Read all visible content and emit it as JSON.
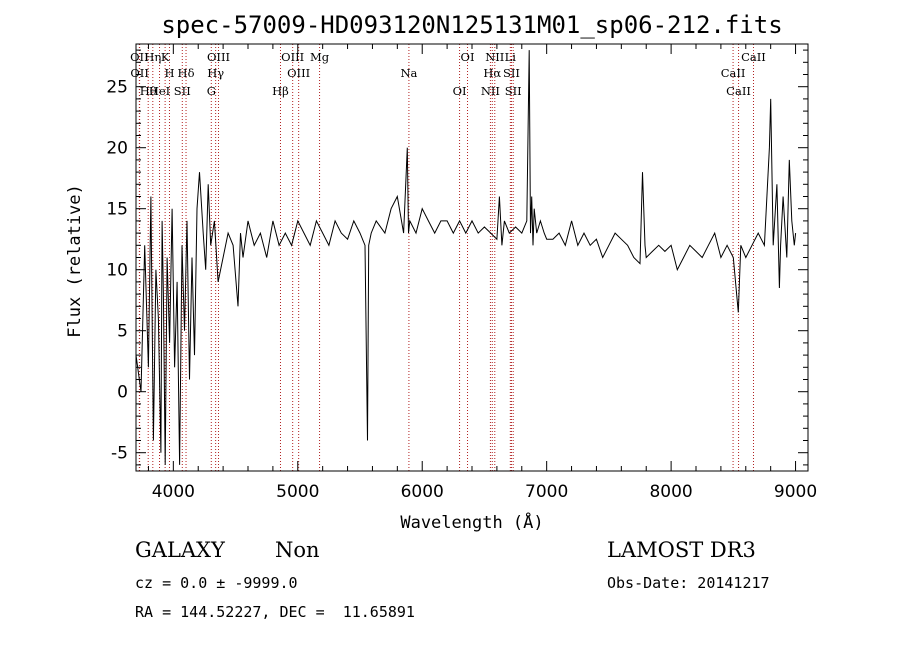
{
  "chart_data": {
    "type": "line",
    "title": "spec-57009-HD093120N125131M01_sp06-212.fits",
    "xlabel": "Wavelength (Å)",
    "ylabel": "Flux (relative)",
    "xlim": [
      3700,
      9100
    ],
    "ylim": [
      -6.5,
      28.5
    ],
    "xticks": [
      4000,
      5000,
      6000,
      7000,
      8000,
      9000
    ],
    "yticks": [
      -5,
      0,
      5,
      10,
      15,
      20,
      25
    ],
    "grid": false,
    "series": [
      {
        "name": "spectrum",
        "x": [
          3700,
          3740,
          3770,
          3800,
          3820,
          3840,
          3860,
          3880,
          3900,
          3910,
          3920,
          3935,
          3950,
          3970,
          3990,
          4010,
          4030,
          4050,
          4070,
          4090,
          4110,
          4130,
          4150,
          4170,
          4190,
          4210,
          4240,
          4260,
          4280,
          4300,
          4330,
          4360,
          4400,
          4440,
          4480,
          4520,
          4540,
          4560,
          4600,
          4650,
          4700,
          4750,
          4800,
          4850,
          4900,
          4950,
          5000,
          5050,
          5100,
          5150,
          5200,
          5250,
          5300,
          5350,
          5400,
          5450,
          5500,
          5540,
          5560,
          5570,
          5590,
          5630,
          5700,
          5750,
          5800,
          5850,
          5880,
          5890,
          5900,
          5950,
          6000,
          6050,
          6100,
          6150,
          6200,
          6250,
          6300,
          6350,
          6400,
          6450,
          6500,
          6550,
          6600,
          6620,
          6640,
          6660,
          6700,
          6750,
          6800,
          6840,
          6860,
          6870,
          6880,
          6890,
          6900,
          6920,
          6950,
          6980,
          7000,
          7050,
          7100,
          7150,
          7200,
          7250,
          7300,
          7350,
          7400,
          7450,
          7500,
          7550,
          7600,
          7650,
          7700,
          7750,
          7770,
          7790,
          7800,
          7850,
          7900,
          7950,
          8000,
          8050,
          8100,
          8150,
          8200,
          8250,
          8300,
          8350,
          8400,
          8450,
          8500,
          8540,
          8560,
          8600,
          8650,
          8700,
          8750,
          8790,
          8800,
          8820,
          8850,
          8870,
          8880,
          8900,
          8930,
          8950,
          8970,
          8990,
          9000
        ],
        "y": [
          3,
          0,
          12,
          2,
          16,
          -4,
          10,
          6,
          -5,
          14,
          8,
          -6,
          11,
          4,
          15,
          2,
          9,
          -6,
          12,
          5,
          14,
          1,
          11,
          3,
          15,
          18,
          13,
          10,
          17,
          12,
          14,
          9,
          11,
          13,
          12,
          7,
          13,
          11,
          14,
          12,
          13,
          11,
          14,
          12,
          13,
          12,
          14,
          13,
          12,
          14,
          13,
          12,
          14,
          13,
          12.5,
          14,
          13,
          12,
          -4,
          12,
          13,
          14,
          13,
          15,
          16,
          13,
          20,
          13,
          14,
          13,
          15,
          14,
          13,
          14,
          14,
          13,
          14,
          13,
          14,
          13,
          13.5,
          13,
          12.5,
          16,
          12,
          14,
          13,
          13.5,
          13,
          14,
          28,
          13,
          16,
          12,
          15,
          13,
          14,
          13,
          12.5,
          12.5,
          13,
          12,
          14,
          12,
          13,
          12,
          12.5,
          11,
          12,
          13,
          12.5,
          12,
          11,
          10.5,
          18,
          12,
          11,
          11.5,
          12,
          11.5,
          12,
          10,
          11,
          12,
          11.5,
          11,
          12,
          13,
          11,
          12,
          11,
          6.5,
          12,
          11,
          12,
          13,
          12,
          20,
          24,
          12,
          17,
          8.5,
          12,
          16,
          11,
          19,
          14,
          12,
          13
        ]
      }
    ],
    "lines": [
      {
        "label": "OII",
        "wave": 3727
      },
      {
        "label": "OII",
        "wave": 3729
      },
      {
        "label": "Hθ",
        "wave": 3798
      },
      {
        "label": "K",
        "wave": 3934
      },
      {
        "label": "H",
        "wave": 3969
      },
      {
        "label": "HeI",
        "wave": 3889
      },
      {
        "label": "Hη",
        "wave": 3835
      },
      {
        "label": "Hδ",
        "wave": 4102
      },
      {
        "label": "SII",
        "wave": 4072
      },
      {
        "label": "OIII",
        "wave": 4363
      },
      {
        "label": "Hγ",
        "wave": 4340
      },
      {
        "label": "G",
        "wave": 4305
      },
      {
        "label": "OIII",
        "wave": 4959
      },
      {
        "label": "OIII",
        "wave": 5007
      },
      {
        "label": "Hβ",
        "wave": 4861
      },
      {
        "label": "Mg",
        "wave": 5175
      },
      {
        "label": "Na",
        "wave": 5893
      },
      {
        "label": "OI",
        "wave": 6300
      },
      {
        "label": "OI",
        "wave": 6364
      },
      {
        "label": "Hα",
        "wave": 6563
      },
      {
        "label": "NII",
        "wave": 6548
      },
      {
        "label": "NII",
        "wave": 6583
      },
      {
        "label": "SII",
        "wave": 6717
      },
      {
        "label": "SII",
        "wave": 6731
      },
      {
        "label": "Li",
        "wave": 6708
      },
      {
        "label": "CaII",
        "wave": 8498
      },
      {
        "label": "CaII",
        "wave": 8542
      },
      {
        "label": "CaII",
        "wave": 8662
      }
    ]
  },
  "info": {
    "class": "GALAXY",
    "subclass": "Non",
    "survey": "LAMOST DR3",
    "cz": "cz = 0.0 ± -9999.0",
    "obsdate": "Obs-Date: 20141217",
    "radec": "RA = 144.52227, DEC =  11.65891"
  },
  "colors": {
    "axis": "#000000",
    "spectrum": "#000000",
    "line_marker": "#b22222"
  }
}
